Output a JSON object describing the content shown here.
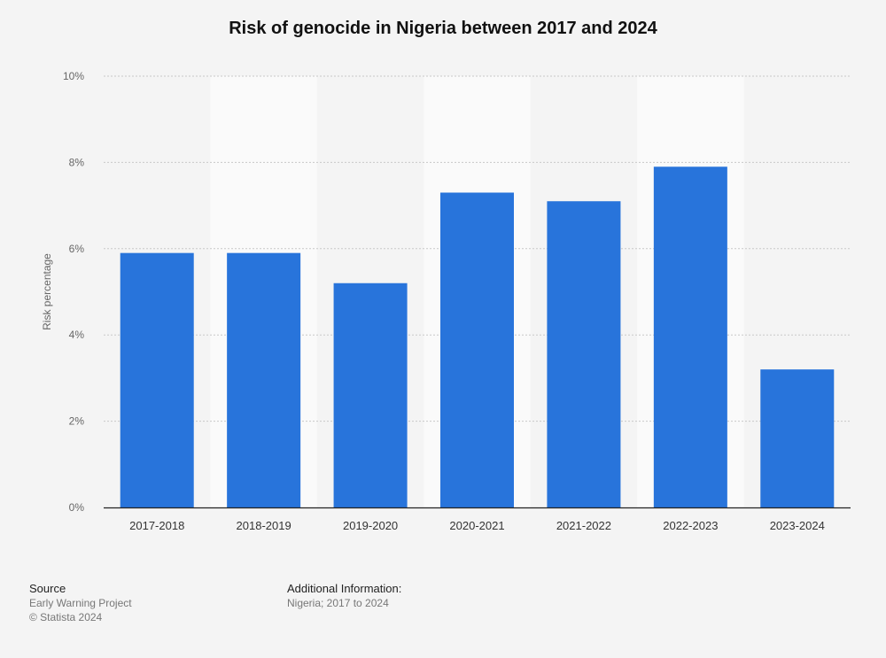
{
  "chart_data": {
    "type": "bar",
    "title": "Risk of genocide in Nigeria between 2017 and 2024",
    "ylabel": "Risk percentage",
    "xlabel": "",
    "categories": [
      "2017-2018",
      "2018-2019",
      "2019-2020",
      "2020-2021",
      "2021-2022",
      "2022-2023",
      "2023-2024"
    ],
    "values": [
      5.9,
      5.9,
      5.2,
      7.3,
      7.1,
      7.9,
      3.2
    ],
    "unit": "%",
    "ylim": [
      0,
      10
    ],
    "yticks": [
      0,
      2,
      4,
      6,
      8,
      10
    ],
    "ytick_labels": [
      "0%",
      "2%",
      "4%",
      "6%",
      "8%",
      "10%"
    ],
    "bar_color": "#2874db",
    "grid": true,
    "legend": "none"
  },
  "footer": {
    "source_heading": "Source",
    "source_lines": [
      "Early Warning Project",
      "© Statista 2024"
    ],
    "info_heading": "Additional Information:",
    "info_lines": [
      "Nigeria; 2017 to 2024"
    ]
  }
}
